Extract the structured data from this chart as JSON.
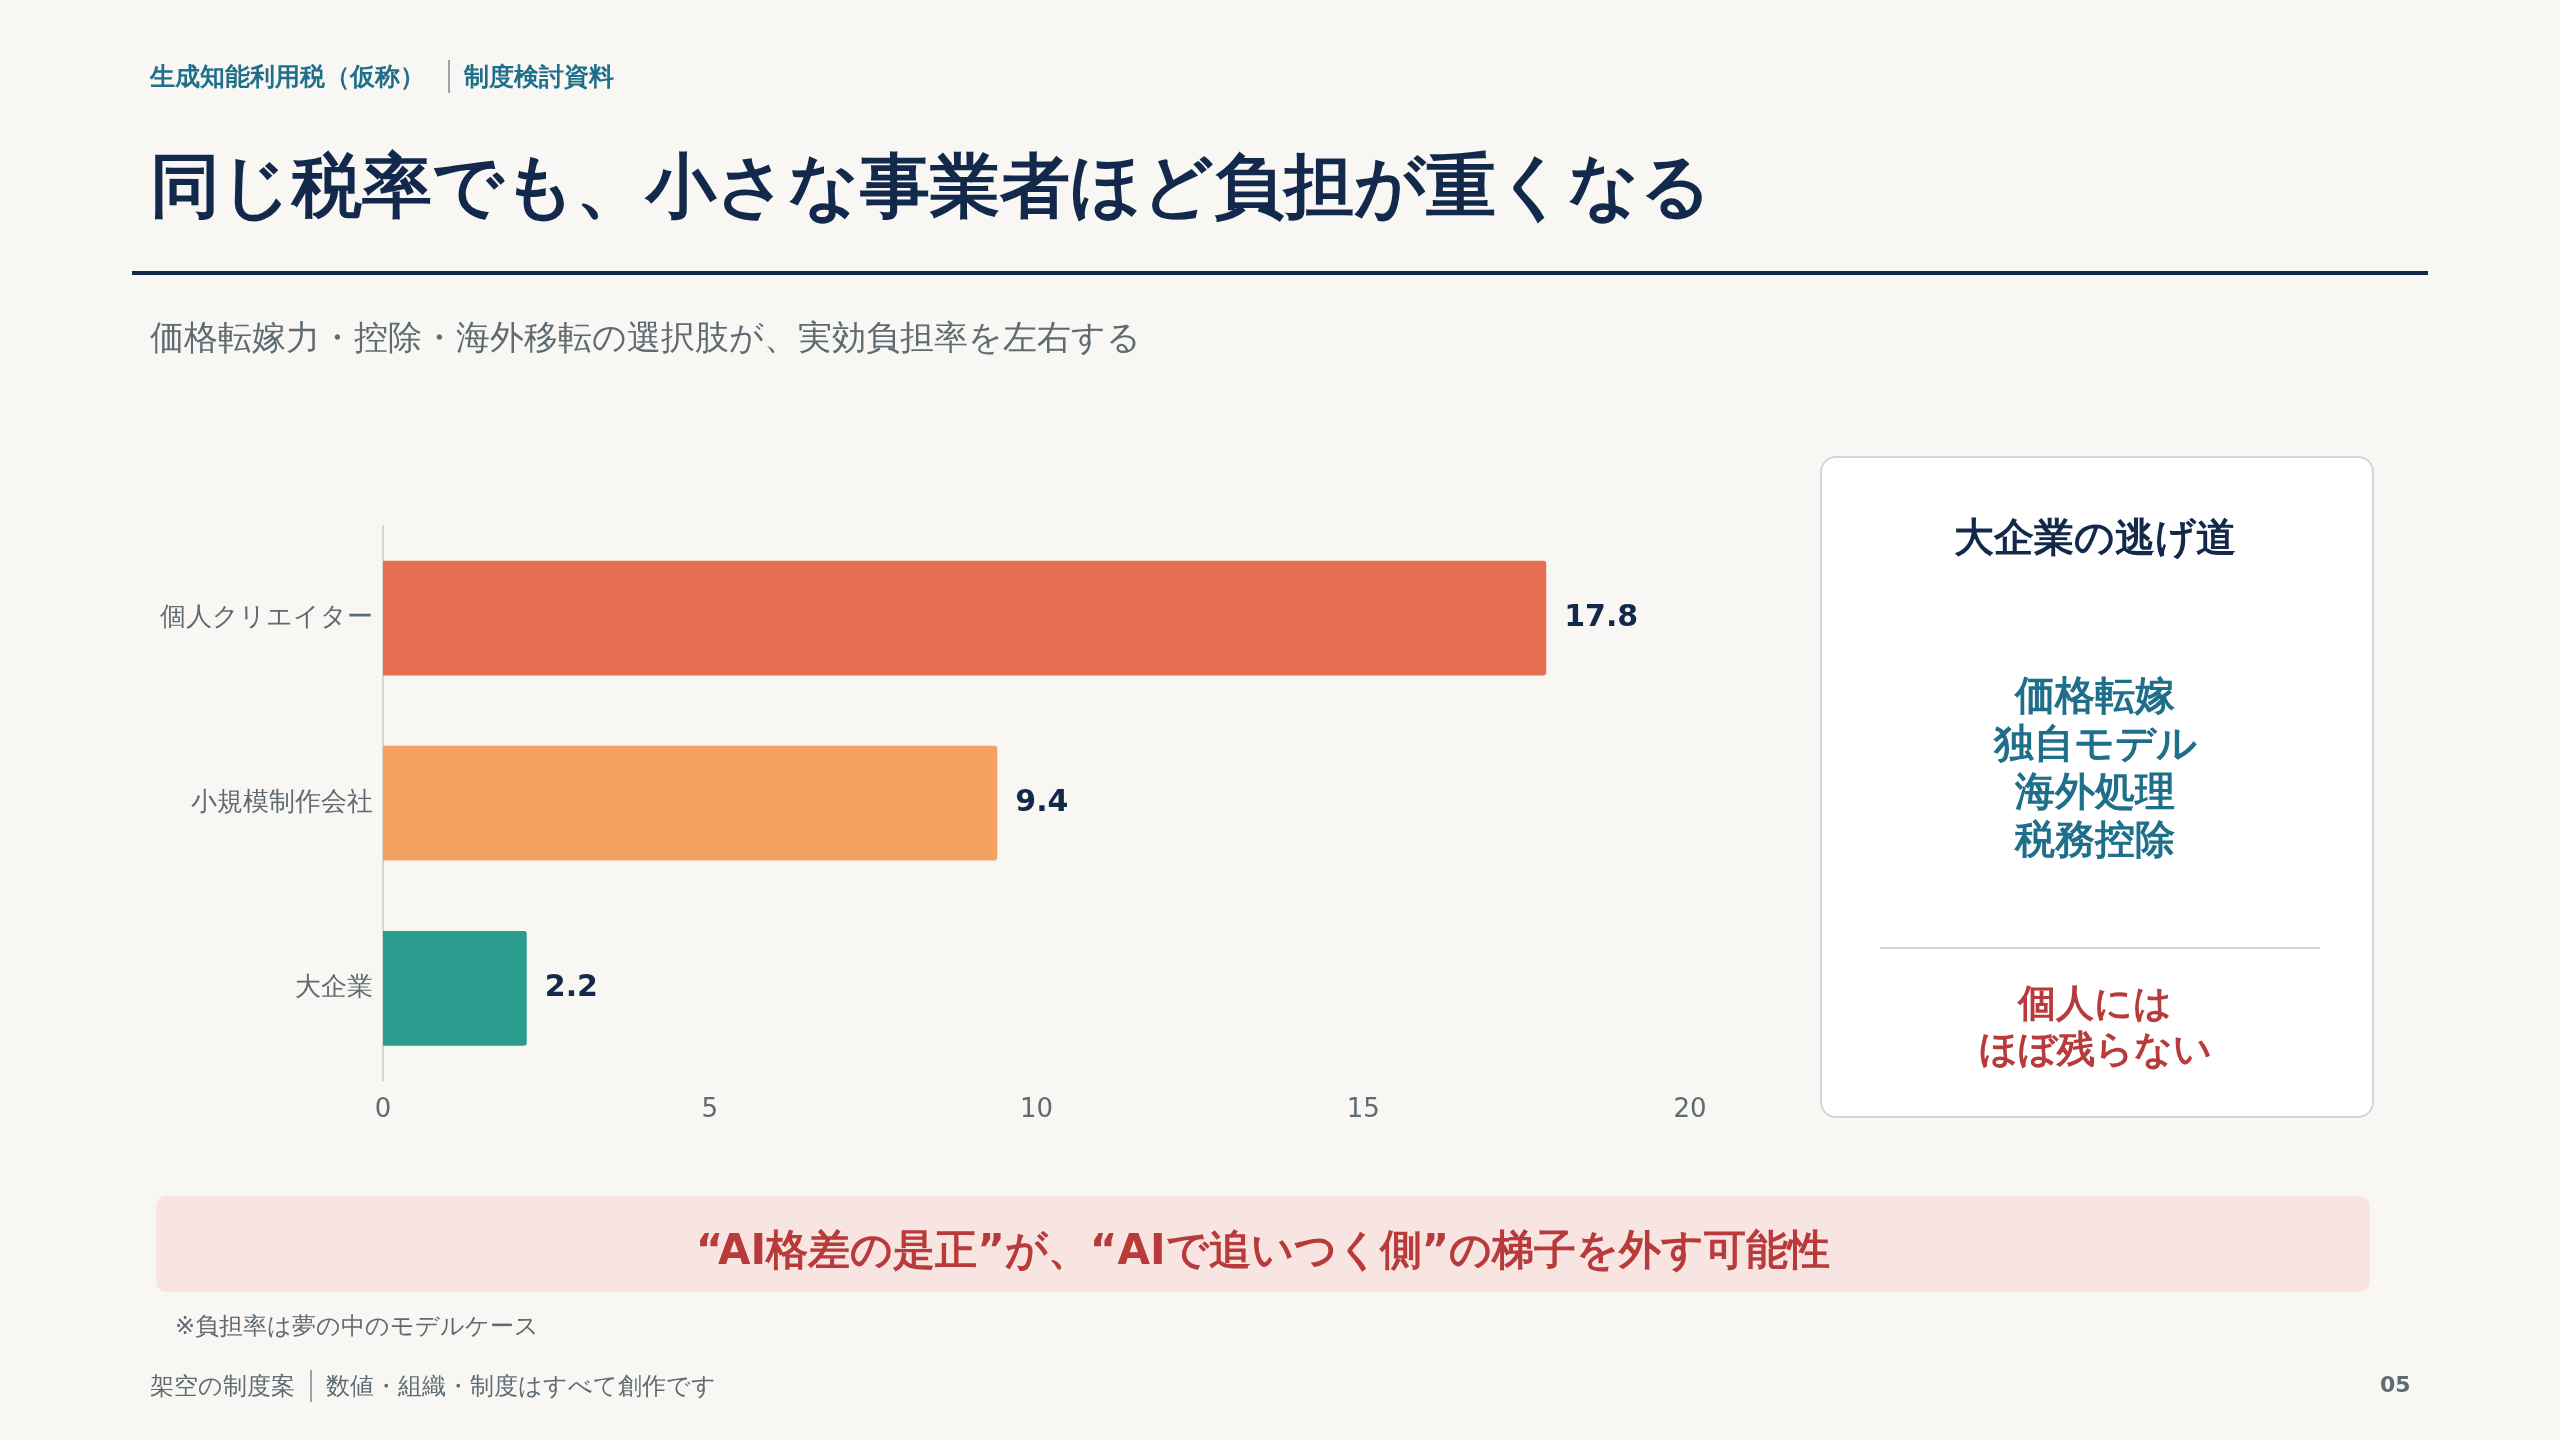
{
  "chart_data": {
    "type": "bar",
    "orientation": "horizontal",
    "title": "同じ税率でも、小さな事業者ほど負担が重くなる",
    "subtitle": "価格転嫁力・控除・海外移転の選択肢が、実効負担率を左右する",
    "categories": [
      "個人クリエイター",
      "小規模制作会社",
      "大企業"
    ],
    "values": [
      17.8,
      9.4,
      2.2
    ],
    "colors": [
      "#e76f51",
      "#f4a261",
      "#2a9d8f"
    ],
    "xlim": [
      0,
      20
    ],
    "xticks": [
      0,
      5,
      10,
      15,
      20
    ],
    "grid": false,
    "legend": false,
    "data_labels": true,
    "annotations": [
      "生成知能利用税（仮称）",
      "制度検討資料",
      "大企業の逃げ道",
      "価格転嫁",
      "独自モデル",
      "海外処理",
      "税務控除",
      "個人には",
      "ほぼ残らない",
      "“AI格差の是正”が、“AIで追いつく側”の梯子を外す可能性",
      "※負担率は夢の中のモデルケース",
      "架空の制度案",
      "数値・組織・制度はすべて創作です",
      "05"
    ]
  }
}
